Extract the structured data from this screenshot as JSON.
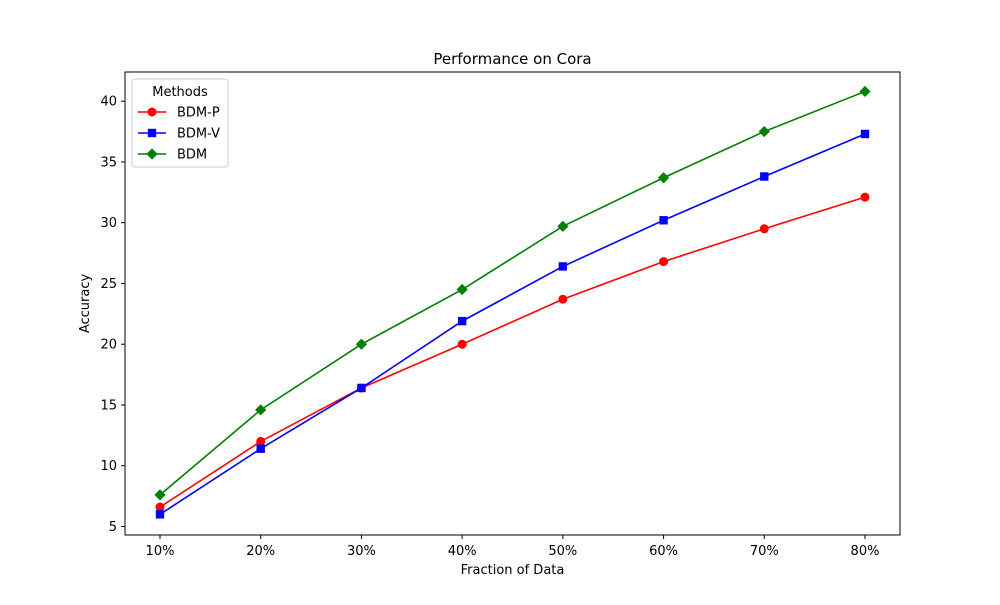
{
  "chart_data": {
    "type": "line",
    "title": "Performance on Cora",
    "xlabel": "Fraction of Data",
    "ylabel": "Accuracy",
    "categories": [
      "10%",
      "20%",
      "30%",
      "40%",
      "50%",
      "60%",
      "70%",
      "80%"
    ],
    "y_ticks": [
      5,
      10,
      15,
      20,
      25,
      30,
      35,
      40
    ],
    "ylim": [
      4.3,
      42.4
    ],
    "grid": false,
    "legend": {
      "title": "Methods",
      "placement": "top-left"
    },
    "series": [
      {
        "name": "BDM-P",
        "color": "#ff0000",
        "marker": "circle",
        "values": [
          6.6,
          12.0,
          16.4,
          20.0,
          23.7,
          26.8,
          29.5,
          32.1
        ]
      },
      {
        "name": "BDM-V",
        "color": "#0000ff",
        "marker": "square",
        "values": [
          6.0,
          11.4,
          16.4,
          21.9,
          26.4,
          30.2,
          33.8,
          37.3
        ]
      },
      {
        "name": "BDM",
        "color": "#008000",
        "marker": "diamond",
        "values": [
          7.6,
          14.6,
          20.0,
          24.5,
          29.7,
          33.7,
          37.5,
          40.8
        ]
      }
    ]
  }
}
